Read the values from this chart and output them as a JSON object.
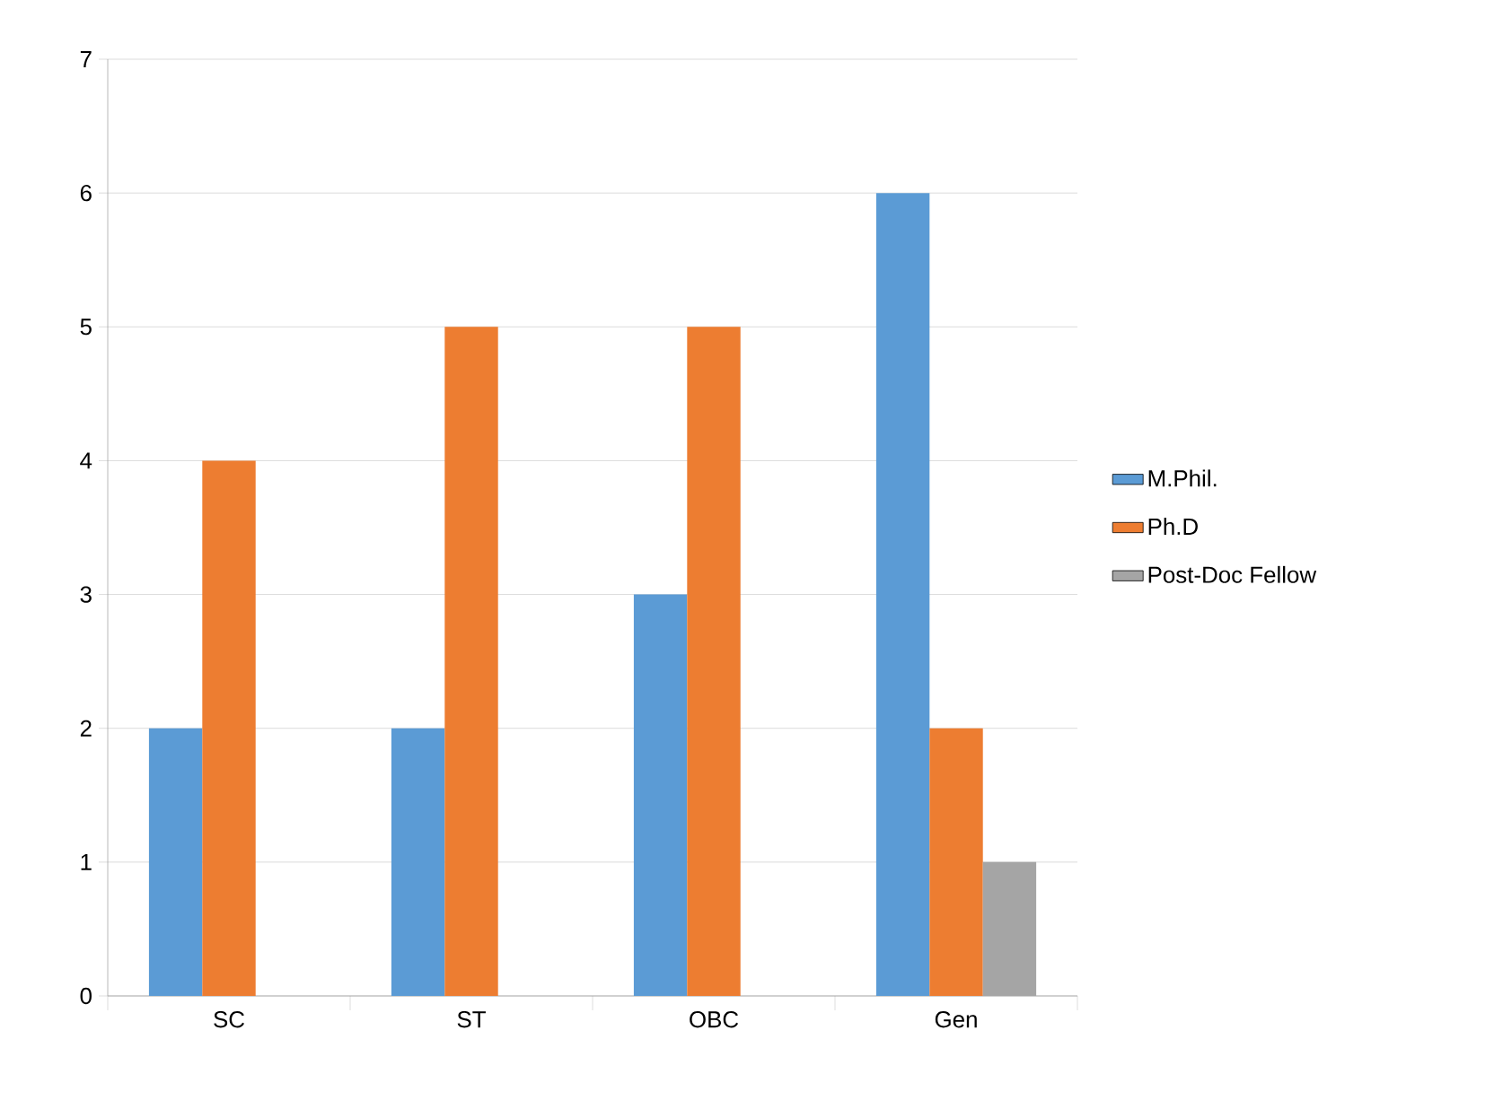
{
  "chart_data": {
    "type": "bar",
    "categories": [
      "SC",
      "ST",
      "OBC",
      "Gen"
    ],
    "series": [
      {
        "name": "M.Phil.",
        "color": "#5b9bd5",
        "values": [
          2,
          2,
          3,
          6
        ]
      },
      {
        "name": "Ph.D",
        "color": "#ed7d31",
        "values": [
          4,
          5,
          5,
          2
        ]
      },
      {
        "name": "Post-Doc Fellow",
        "color": "#a5a5a5",
        "values": [
          0,
          0,
          0,
          1
        ]
      }
    ],
    "ylim": [
      0,
      7
    ],
    "yticks": [
      0,
      1,
      2,
      3,
      4,
      5,
      6,
      7
    ],
    "grid": "y",
    "legend": "right"
  }
}
